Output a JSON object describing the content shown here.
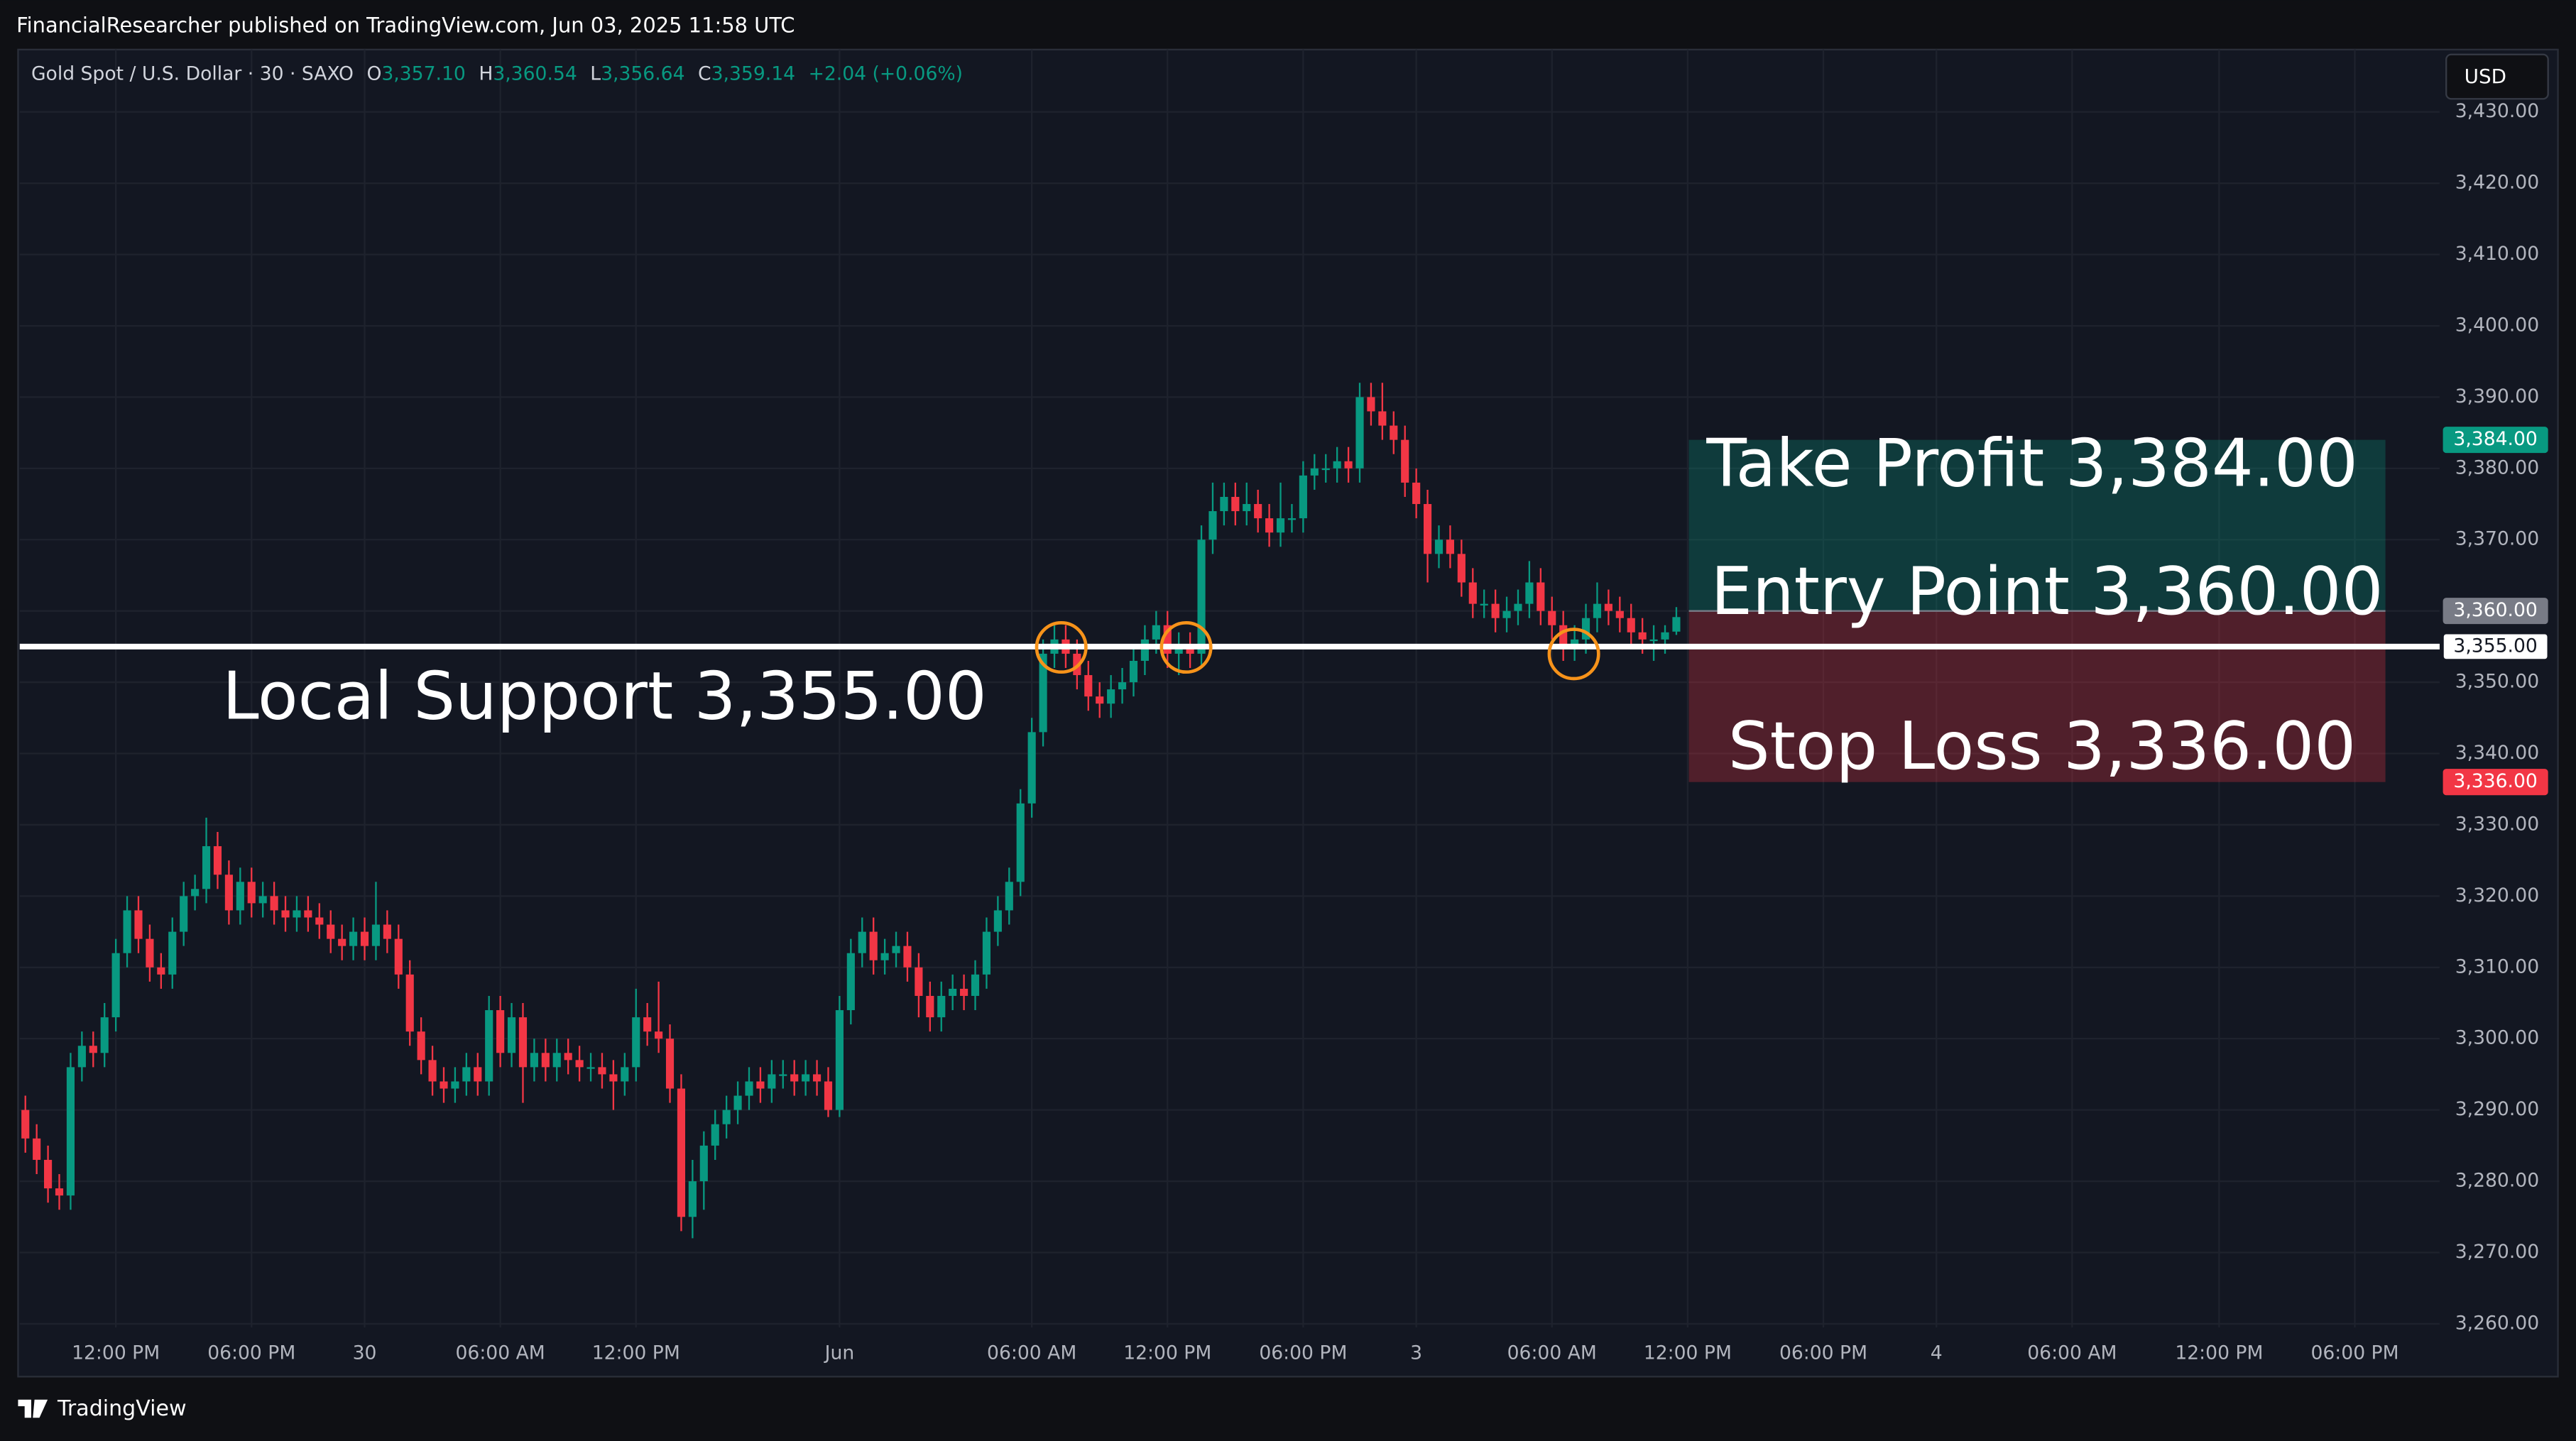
{
  "header": {
    "attribution": "FinancialResearcher published on TradingView.com, Jun 03, 2025 11:58 UTC",
    "symbol": "Gold Spot / U.S. Dollar · 30 · SAXO",
    "ohlc_labels": [
      {
        "key": "O",
        "value": "3,357.10"
      },
      {
        "key": "H",
        "value": "3,360.54"
      },
      {
        "key": "L",
        "value": "3,356.64"
      },
      {
        "key": "C",
        "value": "3,359.14"
      }
    ],
    "change": "+2.04 (+0.06%)",
    "currency": "USD",
    "brand": "TradingView"
  },
  "chart_data": {
    "type": "candlestick",
    "up_color": "#089981",
    "down_color": "#f23645",
    "grid": true,
    "xlim": [
      -0.5,
      213.5
    ],
    "xticks": [
      {
        "value": 8,
        "label": "12:00 PM"
      },
      {
        "value": 20,
        "label": "06:00 PM"
      },
      30,
      {
        "value": 42,
        "label": "06:00 AM"
      },
      {
        "value": 54,
        "label": "12:00 PM"
      },
      {
        "value": 72,
        "label": "Jun"
      },
      {
        "value": 89,
        "label": "06:00 AM"
      },
      {
        "value": 101,
        "label": "12:00 PM"
      },
      {
        "value": 113,
        "label": "06:00 PM"
      },
      {
        "value": 123,
        "label": "3"
      },
      {
        "value": 135,
        "label": "06:00 AM"
      },
      {
        "value": 147,
        "label": "12:00 PM"
      },
      {
        "value": 159,
        "label": "06:00 PM"
      },
      {
        "value": 169,
        "label": "4"
      },
      {
        "value": 181,
        "label": "06:00 AM"
      },
      {
        "value": 194,
        "label": "12:00 PM"
      },
      {
        "value": 206,
        "label": "06:00 PM"
      }
    ],
    "ylim": [
      3259.5,
      3438.75
    ],
    "yticks": [
      {
        "value": 3260,
        "label": "3,260.00"
      },
      {
        "value": 3270,
        "label": "3,270.00"
      },
      {
        "value": 3280,
        "label": "3,280.00"
      },
      {
        "value": 3290,
        "label": "3,290.00"
      },
      {
        "value": 3300,
        "label": "3,300.00"
      },
      {
        "value": 3310,
        "label": "3,310.00"
      },
      {
        "value": 3320,
        "label": "3,320.00"
      },
      {
        "value": 3330,
        "label": "3,330.00"
      },
      {
        "value": 3340,
        "label": "3,340.00"
      },
      {
        "value": 3350,
        "label": "3,350.00"
      },
      {
        "value": 3360,
        "label": "3,360.00"
      },
      {
        "value": 3370,
        "label": "3,370.00"
      },
      {
        "value": 3380,
        "label": "3,380.00"
      },
      {
        "value": 3390,
        "label": "3,390.00"
      },
      {
        "value": 3400,
        "label": "3,400.00"
      },
      {
        "value": 3410,
        "label": "3,410.00"
      },
      {
        "value": 3420,
        "label": "3,420.00"
      },
      {
        "value": 3430,
        "label": "3,430.00"
      }
    ],
    "levels": {
      "support": {
        "label": "Local Support 3,355.00",
        "value": 3355,
        "price_label": "3,355.00",
        "color": "#ffffff"
      },
      "take_profit": {
        "label": "Take Profit 3,384.00",
        "value": 3384,
        "price_label": "3,384.00",
        "color": "#089981"
      },
      "entry": {
        "label": "Entry Point 3,360.00",
        "value": 3360,
        "price_label": "3,360.00",
        "color": "#787b86"
      },
      "stop_loss": {
        "label": "Stop Loss 3,336.00",
        "value": 3336,
        "price_label": "3,336.00",
        "color": "#f23645"
      }
    },
    "ohlc": [
      [
        3290,
        3292,
        3284,
        3286
      ],
      [
        3286,
        3288,
        3281,
        3283
      ],
      [
        3283,
        3285,
        3277,
        3279
      ],
      [
        3279,
        3281,
        3276,
        3278
      ],
      [
        3278,
        3298,
        3276,
        3296
      ],
      [
        3296,
        3301,
        3294,
        3299
      ],
      [
        3299,
        3301,
        3296,
        3298
      ],
      [
        3298,
        3305,
        3296,
        3303
      ],
      [
        3303,
        3314,
        3301,
        3312
      ],
      [
        3312,
        3320,
        3310,
        3318
      ],
      [
        3318,
        3320,
        3312,
        3314
      ],
      [
        3314,
        3316,
        3308,
        3310
      ],
      [
        3310,
        3312,
        3307,
        3309
      ],
      [
        3309,
        3317,
        3307,
        3315
      ],
      [
        3315,
        3322,
        3313,
        3320
      ],
      [
        3320,
        3323,
        3318,
        3321
      ],
      [
        3321,
        3331,
        3319,
        3327
      ],
      [
        3327,
        3329,
        3321,
        3323
      ],
      [
        3323,
        3325,
        3316,
        3318
      ],
      [
        3318,
        3324,
        3316,
        3322
      ],
      [
        3322,
        3324,
        3317,
        3319
      ],
      [
        3319,
        3322,
        3317,
        3320
      ],
      [
        3320,
        3322,
        3316,
        3318
      ],
      [
        3318,
        3320,
        3315,
        3317
      ],
      [
        3317,
        3320,
        3315,
        3318
      ],
      [
        3318,
        3320,
        3315,
        3317
      ],
      [
        3317,
        3319,
        3314,
        3316
      ],
      [
        3316,
        3318,
        3312,
        3314
      ],
      [
        3314,
        3316,
        3311,
        3313
      ],
      [
        3313,
        3317,
        3311,
        3315
      ],
      [
        3315,
        3317,
        3311,
        3313
      ],
      [
        3313,
        3322,
        3311,
        3316
      ],
      [
        3316,
        3318,
        3312,
        3314
      ],
      [
        3314,
        3316,
        3307,
        3309
      ],
      [
        3309,
        3311,
        3299,
        3301
      ],
      [
        3301,
        3303,
        3295,
        3297
      ],
      [
        3297,
        3299,
        3292,
        3294
      ],
      [
        3294,
        3296,
        3291,
        3293
      ],
      [
        3293,
        3296,
        3291,
        3294
      ],
      [
        3294,
        3298,
        3292,
        3296
      ],
      [
        3296,
        3298,
        3292,
        3294
      ],
      [
        3294,
        3306,
        3292,
        3304
      ],
      [
        3304,
        3306,
        3296,
        3298
      ],
      [
        3298,
        3305,
        3296,
        3303
      ],
      [
        3303,
        3305,
        3291,
        3296
      ],
      [
        3296,
        3300,
        3294,
        3298
      ],
      [
        3298,
        3300,
        3294,
        3296
      ],
      [
        3296,
        3300,
        3294,
        3298
      ],
      [
        3298,
        3300,
        3295,
        3297
      ],
      [
        3297,
        3299,
        3294,
        3296
      ],
      [
        3296,
        3298,
        3294,
        3296
      ],
      [
        3296,
        3298,
        3293,
        3295
      ],
      [
        3295,
        3297,
        3290,
        3294
      ],
      [
        3294,
        3298,
        3292,
        3296
      ],
      [
        3296,
        3307,
        3294,
        3303
      ],
      [
        3303,
        3305,
        3299,
        3301
      ],
      [
        3301,
        3308,
        3298,
        3300
      ],
      [
        3300,
        3302,
        3291,
        3293
      ],
      [
        3293,
        3295,
        3273,
        3275
      ],
      [
        3275,
        3283,
        3272,
        3280
      ],
      [
        3280,
        3287,
        3276,
        3285
      ],
      [
        3285,
        3290,
        3283,
        3288
      ],
      [
        3288,
        3292,
        3286,
        3290
      ],
      [
        3290,
        3294,
        3288,
        3292
      ],
      [
        3292,
        3296,
        3290,
        3294
      ],
      [
        3294,
        3296,
        3291,
        3293
      ],
      [
        3293,
        3297,
        3291,
        3295
      ],
      [
        3295,
        3297,
        3293,
        3295
      ],
      [
        3295,
        3297,
        3292,
        3294
      ],
      [
        3294,
        3297,
        3292,
        3295
      ],
      [
        3295,
        3297,
        3292,
        3294
      ],
      [
        3294,
        3296,
        3289,
        3290
      ],
      [
        3290,
        3306,
        3289,
        3304
      ],
      [
        3304,
        3314,
        3302,
        3312
      ],
      [
        3312,
        3317,
        3310,
        3315
      ],
      [
        3315,
        3317,
        3309,
        3311
      ],
      [
        3311,
        3314,
        3309,
        3312
      ],
      [
        3312,
        3315,
        3310,
        3313
      ],
      [
        3313,
        3315,
        3308,
        3310
      ],
      [
        3310,
        3312,
        3303,
        3306
      ],
      [
        3306,
        3308,
        3301,
        3303
      ],
      [
        3303,
        3308,
        3301,
        3306
      ],
      [
        3306,
        3309,
        3304,
        3307
      ],
      [
        3307,
        3309,
        3304,
        3306
      ],
      [
        3306,
        3311,
        3304,
        3309
      ],
      [
        3309,
        3317,
        3307,
        3315
      ],
      [
        3315,
        3320,
        3313,
        3318
      ],
      [
        3318,
        3324,
        3316,
        3322
      ],
      [
        3322,
        3335,
        3320,
        3333
      ],
      [
        3333,
        3345,
        3331,
        3343
      ],
      [
        3343,
        3356,
        3341,
        3354
      ],
      [
        3354,
        3358,
        3352,
        3356
      ],
      [
        3356,
        3358,
        3352,
        3354
      ],
      [
        3354,
        3356,
        3349,
        3351
      ],
      [
        3351,
        3353,
        3346,
        3348
      ],
      [
        3348,
        3350,
        3345,
        3347
      ],
      [
        3347,
        3351,
        3345,
        3349
      ],
      [
        3349,
        3352,
        3347,
        3350
      ],
      [
        3350,
        3355,
        3348,
        3353
      ],
      [
        3353,
        3358,
        3351,
        3356
      ],
      [
        3356,
        3360,
        3354,
        3358
      ],
      [
        3358,
        3360,
        3352,
        3354
      ],
      [
        3354,
        3357,
        3351,
        3355
      ],
      [
        3355,
        3357,
        3352,
        3354
      ],
      [
        3354,
        3372,
        3352,
        3370
      ],
      [
        3370,
        3378,
        3368,
        3374
      ],
      [
        3374,
        3378,
        3372,
        3376
      ],
      [
        3376,
        3378,
        3372,
        3374
      ],
      [
        3374,
        3378,
        3372,
        3375
      ],
      [
        3375,
        3377,
        3371,
        3373
      ],
      [
        3373,
        3375,
        3369,
        3371
      ],
      [
        3371,
        3378,
        3369,
        3373
      ],
      [
        3373,
        3375,
        3371,
        3373
      ],
      [
        3373,
        3381,
        3371,
        3379
      ],
      [
        3379,
        3382,
        3377,
        3380
      ],
      [
        3380,
        3382,
        3378,
        3380
      ],
      [
        3380,
        3383,
        3378,
        3381
      ],
      [
        3381,
        3383,
        3378,
        3380
      ],
      [
        3380,
        3392,
        3378,
        3390
      ],
      [
        3390,
        3392,
        3386,
        3388
      ],
      [
        3388,
        3392,
        3384,
        3386
      ],
      [
        3386,
        3388,
        3382,
        3384
      ],
      [
        3384,
        3386,
        3376,
        3378
      ],
      [
        3378,
        3380,
        3373,
        3375
      ],
      [
        3375,
        3377,
        3364,
        3368
      ],
      [
        3368,
        3372,
        3366,
        3370
      ],
      [
        3370,
        3372,
        3366,
        3368
      ],
      [
        3368,
        3370,
        3362,
        3364
      ],
      [
        3364,
        3366,
        3359,
        3361
      ],
      [
        3361,
        3363,
        3359,
        3361
      ],
      [
        3361,
        3363,
        3357,
        3359
      ],
      [
        3359,
        3362,
        3357,
        3360
      ],
      [
        3360,
        3363,
        3358,
        3361
      ],
      [
        3361,
        3367,
        3359,
        3364
      ],
      [
        3364,
        3366,
        3358,
        3360
      ],
      [
        3360,
        3362,
        3356,
        3358
      ],
      [
        3358,
        3360,
        3353,
        3355
      ],
      [
        3355,
        3358,
        3353,
        3356
      ],
      [
        3356,
        3361,
        3354,
        3359
      ],
      [
        3359,
        3364,
        3357,
        3361
      ],
      [
        3361,
        3363,
        3358,
        3360
      ],
      [
        3360,
        3362,
        3357,
        3359
      ],
      [
        3359,
        3361,
        3355,
        3357
      ],
      [
        3357,
        3359,
        3354,
        3356
      ],
      [
        3356,
        3358,
        3353,
        3356
      ],
      [
        3356,
        3358,
        3354,
        3357
      ],
      [
        3357.1,
        3360.54,
        3356.64,
        3359.14
      ]
    ]
  }
}
